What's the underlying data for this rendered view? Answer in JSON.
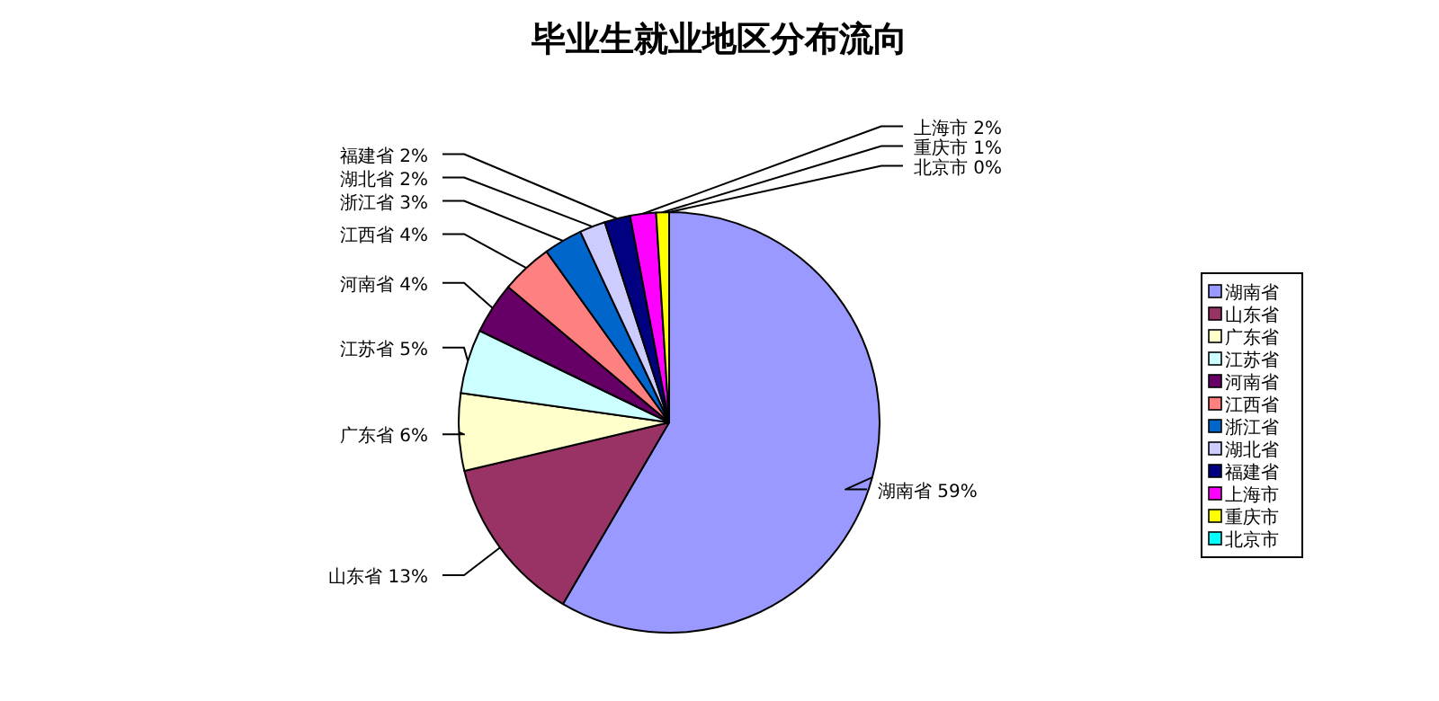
{
  "chart_data": {
    "type": "pie",
    "title": "毕业生就业地区分布流向",
    "categories": [
      "湖南省",
      "山东省",
      "广东省",
      "江苏省",
      "河南省",
      "江西省",
      "浙江省",
      "湖北省",
      "福建省",
      "上海市",
      "重庆市",
      "北京市"
    ],
    "values": [
      59,
      13,
      6,
      5,
      4,
      4,
      3,
      2,
      2,
      2,
      1,
      0
    ],
    "value_labels": [
      "59%",
      "13%",
      "6%",
      "5%",
      "4%",
      "4%",
      "3%",
      "2%",
      "2%",
      "2%",
      "1%",
      "0%"
    ],
    "colors": [
      "#9999ff",
      "#993366",
      "#ffffcc",
      "#ccffff",
      "#660066",
      "#ff8080",
      "#0066cc",
      "#ccccff",
      "#000080",
      "#ff00ff",
      "#ffff00",
      "#00ffff"
    ],
    "legend": "right"
  }
}
